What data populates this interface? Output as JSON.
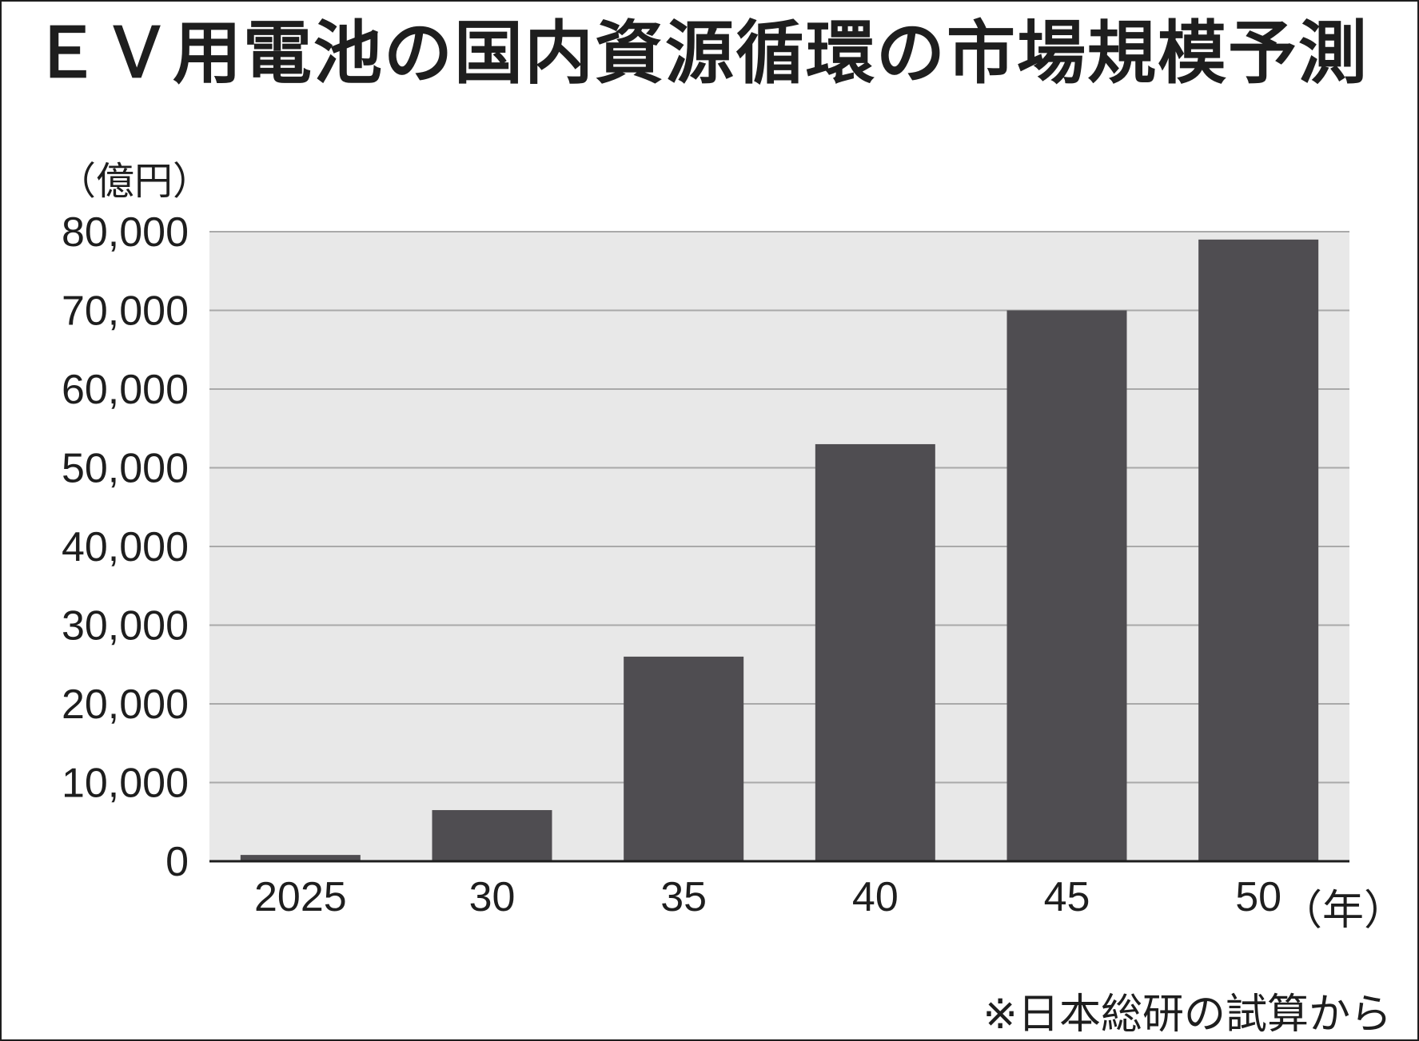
{
  "chart_data": {
    "type": "bar",
    "title": "ＥＶ用電池の国内資源循環の市場規模予測",
    "ylabel": "（億円）",
    "xlabel": "（年）",
    "categories": [
      "2025",
      "30",
      "35",
      "40",
      "45",
      "50"
    ],
    "values": [
      800,
      6500,
      26000,
      53000,
      70000,
      79000
    ],
    "ylim": [
      0,
      80000
    ],
    "yticks": [
      0,
      10000,
      20000,
      30000,
      40000,
      50000,
      60000,
      70000,
      80000
    ],
    "ytick_labels": [
      "0",
      "10,000",
      "20,000",
      "30,000",
      "40,000",
      "50,000",
      "60,000",
      "70,000",
      "80,000"
    ],
    "grid": true,
    "source_note": "※日本総研の試算から",
    "colors": {
      "bar": "#4f4d51",
      "plot_background": "#e8e8e8",
      "grid": "#a9a9a9",
      "text": "#1e1e1e"
    }
  }
}
